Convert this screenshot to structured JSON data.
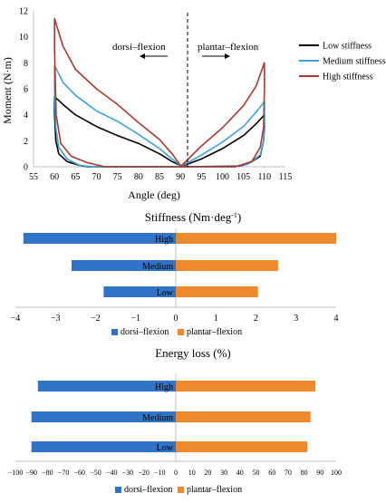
{
  "chart_data": [
    {
      "type": "line",
      "xlabel": "Angle (deg)",
      "ylabel": "Moment (N·m)",
      "xlim": [
        55,
        115
      ],
      "ylim": [
        0,
        12
      ],
      "x_ticks": [
        "55",
        "60",
        "65",
        "70",
        "75",
        "80",
        "85",
        "90",
        "95",
        "100",
        "105",
        "110",
        "115"
      ],
      "y_ticks": [
        "0",
        "2",
        "4",
        "6",
        "8",
        "10",
        "12"
      ],
      "annotations": {
        "dorsi": "dorsi–flexion",
        "plantar": "plantar–flexion"
      },
      "legend_position": "right",
      "series": [
        {
          "name": "Low stiffness",
          "color": "#000000",
          "points": [
            [
              90,
              0.1
            ],
            [
              88,
              0.4
            ],
            [
              85,
              1.0
            ],
            [
              80,
              1.8
            ],
            [
              75,
              2.4
            ],
            [
              70,
              3.1
            ],
            [
              65,
              4.0
            ],
            [
              62,
              4.8
            ],
            [
              60,
              5.4
            ],
            [
              60,
              4.0
            ],
            [
              60.3,
              2.0
            ],
            [
              61,
              1.0
            ],
            [
              63,
              0.4
            ],
            [
              66,
              0.1
            ],
            [
              68,
              0
            ],
            [
              90,
              0
            ],
            [
              95,
              0.6
            ],
            [
              100,
              1.4
            ],
            [
              105,
              2.4
            ],
            [
              108,
              3.3
            ],
            [
              110,
              4.0
            ],
            [
              110,
              3.0
            ],
            [
              109.8,
              2.0
            ],
            [
              109,
              0.8
            ],
            [
              106,
              0.2
            ],
            [
              104,
              0.05
            ],
            [
              90,
              0
            ]
          ]
        },
        {
          "name": "Medium stiffness",
          "color": "#3fa0dd",
          "points": [
            [
              90,
              0.1
            ],
            [
              88,
              0.6
            ],
            [
              85,
              1.4
            ],
            [
              80,
              2.5
            ],
            [
              75,
              3.5
            ],
            [
              70,
              4.3
            ],
            [
              65,
              5.5
            ],
            [
              62,
              6.5
            ],
            [
              60,
              7.8
            ],
            [
              60,
              6.0
            ],
            [
              60.3,
              3.0
            ],
            [
              61,
              1.5
            ],
            [
              63,
              0.6
            ],
            [
              66,
              0.1
            ],
            [
              69,
              0
            ],
            [
              90,
              0
            ],
            [
              95,
              0.9
            ],
            [
              100,
              1.9
            ],
            [
              105,
              3.1
            ],
            [
              108,
              4.2
            ],
            [
              110,
              5.0
            ],
            [
              110,
              3.5
            ],
            [
              109.8,
              2.0
            ],
            [
              109,
              0.9
            ],
            [
              106,
              0.2
            ],
            [
              103,
              0
            ],
            [
              90,
              0
            ]
          ]
        },
        {
          "name": "High stiffness",
          "color": "#a63a2e",
          "points": [
            [
              90,
              0.1
            ],
            [
              88,
              1.0
            ],
            [
              85,
              2.1
            ],
            [
              80,
              3.4
            ],
            [
              75,
              4.8
            ],
            [
              70,
              6.0
            ],
            [
              65,
              7.5
            ],
            [
              62,
              9.3
            ],
            [
              60,
              11.4
            ],
            [
              60,
              9.0
            ],
            [
              60.4,
              4.0
            ],
            [
              61.5,
              1.8
            ],
            [
              64,
              0.8
            ],
            [
              68,
              0.3
            ],
            [
              72,
              0
            ],
            [
              90,
              0
            ],
            [
              95,
              1.6
            ],
            [
              100,
              3.0
            ],
            [
              105,
              4.7
            ],
            [
              108,
              6.2
            ],
            [
              110,
              8.0
            ],
            [
              110,
              6.0
            ],
            [
              109.8,
              3.0
            ],
            [
              109,
              1.5
            ],
            [
              107,
              0.4
            ],
            [
              103,
              0
            ],
            [
              90,
              0
            ]
          ]
        }
      ]
    },
    {
      "type": "bar",
      "orientation": "horizontal",
      "title": "Stiffness (Nm·deg",
      "title_sup": "-1",
      "title_end": ")",
      "categories": [
        "High",
        "Medium",
        "Low"
      ],
      "xlim": [
        -4,
        4
      ],
      "x_ticks": [
        "−4",
        "−3",
        "−2",
        "−1",
        "0",
        "1",
        "2",
        "3",
        "4"
      ],
      "legend_position": "bottom",
      "series": [
        {
          "name": "dorsi–flexion",
          "color": "#2f74c7",
          "values": [
            -3.8,
            -2.6,
            -1.8
          ]
        },
        {
          "name": "plantar–flexion",
          "color": "#ef8a2c",
          "values": [
            4.0,
            2.55,
            2.05
          ]
        }
      ]
    },
    {
      "type": "bar",
      "orientation": "horizontal",
      "title": "Energy loss (%)",
      "categories": [
        "High",
        "Medium",
        "Low"
      ],
      "xlim": [
        -100,
        100
      ],
      "x_ticks": [
        "−100",
        "−90",
        "−80",
        "−70",
        "−60",
        "−50",
        "−40",
        "−30",
        "−20",
        "−10",
        "0",
        "10",
        "20",
        "30",
        "40",
        "50",
        "60",
        "70",
        "80",
        "90",
        "100"
      ],
      "legend_position": "bottom",
      "series": [
        {
          "name": "dorsi–flexion",
          "color": "#2f74c7",
          "values": [
            -86,
            -90,
            -90
          ]
        },
        {
          "name": "plantar–flexion",
          "color": "#ef8a2c",
          "values": [
            87,
            84,
            82
          ]
        }
      ]
    }
  ]
}
